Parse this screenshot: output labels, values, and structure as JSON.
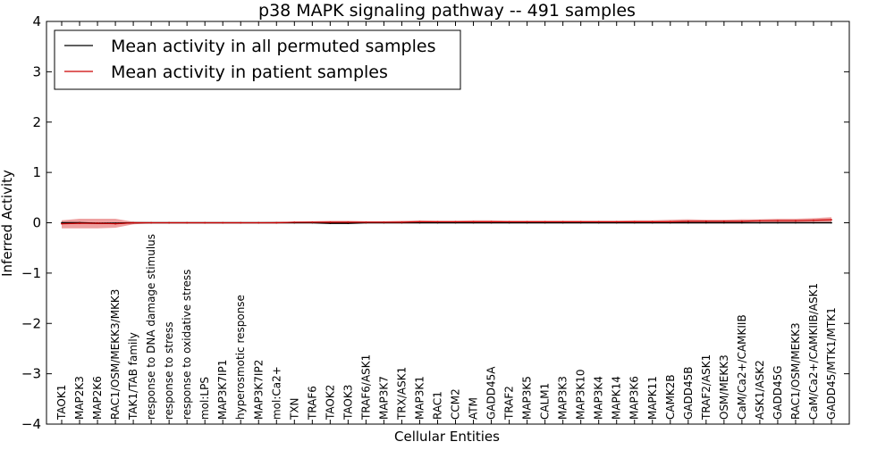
{
  "chart_data": {
    "type": "line",
    "title": "p38 MAPK signaling pathway -- 491 samples",
    "xlabel": "Cellular Entities",
    "ylabel": "Inferred Activity",
    "ylim": [
      -4,
      4
    ],
    "yticks": [
      -4,
      -3,
      -2,
      -1,
      0,
      1,
      2,
      3,
      4
    ],
    "ytick_labels": [
      "−4",
      "−3",
      "−2",
      "−1",
      "0",
      "1",
      "2",
      "3",
      "4"
    ],
    "grid": false,
    "legend_position": "top-left",
    "categories": [
      "TAOK1",
      "MAP2K3",
      "MAP2K6",
      "RAC1/OSM/MEKK3/MKK3",
      "TAK1/TAB family",
      "response to DNA damage stimulus",
      "response to stress",
      "response to oxidative stress",
      "mol:LPS",
      "MAP3K7IP1",
      "hyperosmotic response",
      "MAP3K7IP2",
      "mol:Ca2+",
      "TXN",
      "TRAF6",
      "TAOK2",
      "TAOK3",
      "TRAF6/ASK1",
      "MAP3K7",
      "TRX/ASK1",
      "MAP3K1",
      "RAC1",
      "CCM2",
      "ATM",
      "GADD45A",
      "TRAF2",
      "MAP3K5",
      "CALM1",
      "MAP3K3",
      "MAP3K10",
      "MAP3K4",
      "MAPK14",
      "MAP3K6",
      "MAPK11",
      "CAMK2B",
      "GADD45B",
      "TRAF2/ASK1",
      "OSM/MEKK3",
      "CaM/Ca2+/CAMKIIB",
      "ASK1/ASK2",
      "GADD45G",
      "RAC1/OSM/MEKK3",
      "CaM/Ca2+/CAMKIIB/ASK1",
      "GADD45/MTK1/MTK1"
    ],
    "series": [
      {
        "name": "Mean activity in all permuted samples",
        "color": "#000000",
        "values": [
          0,
          0,
          -0.01,
          -0.01,
          0,
          0,
          0,
          0,
          0,
          0,
          0,
          0,
          0,
          0,
          0,
          -0.01,
          -0.01,
          0,
          0,
          0,
          0,
          0,
          0,
          0,
          0,
          0,
          0,
          0,
          0,
          0,
          0,
          0,
          0,
          0,
          0,
          0,
          0,
          0,
          0,
          0,
          0,
          0,
          0,
          0
        ]
      },
      {
        "name": "Mean activity in patient samples",
        "color": "#cc0000",
        "band_color": "#e88080",
        "values": [
          -0.02,
          -0.01,
          -0.01,
          -0.02,
          0,
          0,
          0,
          0,
          0,
          0,
          0,
          0,
          0,
          0.01,
          0.01,
          0.01,
          0.01,
          0.01,
          0.01,
          0.01,
          0.02,
          0.02,
          0.02,
          0.02,
          0.02,
          0.02,
          0.02,
          0.02,
          0.02,
          0.02,
          0.02,
          0.02,
          0.02,
          0.02,
          0.02,
          0.03,
          0.03,
          0.03,
          0.03,
          0.04,
          0.04,
          0.04,
          0.05,
          0.06
        ],
        "lower": [
          -0.11,
          -0.11,
          -0.11,
          -0.1,
          -0.03,
          -0.01,
          -0.01,
          -0.01,
          -0.01,
          -0.01,
          -0.01,
          -0.01,
          -0.01,
          -0.01,
          -0.01,
          -0.01,
          -0.01,
          -0.01,
          -0.01,
          -0.01,
          -0.01,
          -0.01,
          -0.01,
          -0.01,
          -0.01,
          -0.01,
          -0.01,
          -0.01,
          -0.01,
          -0.01,
          -0.01,
          -0.01,
          -0.01,
          -0.01,
          -0.01,
          -0.01,
          -0.01,
          -0.01,
          -0.01,
          0,
          0,
          0,
          0,
          0.01
        ],
        "upper": [
          0.05,
          0.08,
          0.08,
          0.08,
          0.02,
          0.01,
          0.01,
          0.01,
          0.01,
          0.01,
          0.01,
          0.01,
          0.02,
          0.02,
          0.03,
          0.04,
          0.04,
          0.03,
          0.03,
          0.04,
          0.05,
          0.04,
          0.04,
          0.05,
          0.05,
          0.04,
          0.04,
          0.04,
          0.04,
          0.04,
          0.04,
          0.04,
          0.05,
          0.05,
          0.06,
          0.07,
          0.06,
          0.06,
          0.07,
          0.07,
          0.08,
          0.08,
          0.09,
          0.11
        ]
      }
    ]
  }
}
